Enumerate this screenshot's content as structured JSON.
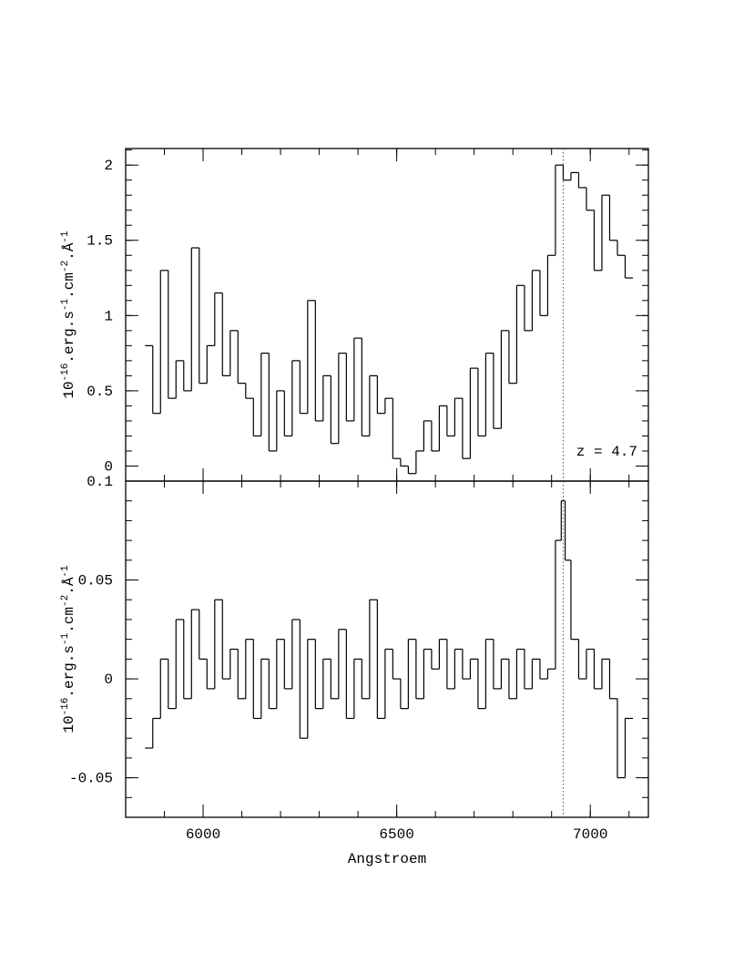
{
  "chart_data": [
    {
      "type": "line",
      "xlim": [
        5800,
        7150
      ],
      "xticks": [
        6000,
        6500,
        7000
      ],
      "x_minor_step": 100,
      "show_xticklabels": false,
      "ylim": [
        -0.1,
        2.11
      ],
      "yticks": [
        0,
        0.5,
        1,
        1.5,
        2
      ],
      "y_minor_step": 0.1,
      "ylabel_parts": [
        "10",
        "-16",
        ".erg.s",
        "-1",
        ".cm",
        "-2",
        ".Å",
        "-1"
      ],
      "color": "#000000",
      "marker_line": 6930,
      "annotation": "z = 4.7",
      "x": [
        5860,
        5880,
        5900,
        5920,
        5940,
        5960,
        5980,
        6000,
        6020,
        6040,
        6060,
        6080,
        6100,
        6120,
        6140,
        6160,
        6180,
        6200,
        6220,
        6240,
        6260,
        6280,
        6300,
        6320,
        6340,
        6360,
        6380,
        6400,
        6420,
        6440,
        6460,
        6480,
        6500,
        6520,
        6540,
        6560,
        6580,
        6600,
        6620,
        6640,
        6660,
        6680,
        6700,
        6720,
        6740,
        6760,
        6780,
        6800,
        6820,
        6840,
        6860,
        6880,
        6900,
        6920,
        6940,
        6960,
        6980,
        7000,
        7020,
        7040,
        7060,
        7080,
        7100
      ],
      "values": [
        0.8,
        0.35,
        1.3,
        0.45,
        0.7,
        0.5,
        1.45,
        0.55,
        0.8,
        1.15,
        0.6,
        0.9,
        0.55,
        0.45,
        0.2,
        0.75,
        0.1,
        0.5,
        0.2,
        0.7,
        0.35,
        1.1,
        0.3,
        0.6,
        0.15,
        0.75,
        0.3,
        0.85,
        0.2,
        0.6,
        0.35,
        0.45,
        0.05,
        0.0,
        -0.05,
        0.1,
        0.3,
        0.1,
        0.4,
        0.2,
        0.45,
        0.05,
        0.65,
        0.2,
        0.75,
        0.25,
        0.9,
        0.55,
        1.2,
        0.9,
        1.3,
        1.0,
        1.4,
        2.0,
        1.9,
        1.95,
        1.85,
        1.7,
        1.3,
        1.8,
        1.5,
        1.4,
        1.25
      ]
    },
    {
      "type": "line",
      "xlim": [
        5800,
        7150
      ],
      "xticks": [
        6000,
        6500,
        7000
      ],
      "x_minor_step": 100,
      "show_xticklabels": true,
      "xlabel": "Angstroem",
      "ylim": [
        -0.07,
        0.1
      ],
      "yticks": [
        -0.05,
        0,
        0.05,
        0.1
      ],
      "y_minor_step": 0.01,
      "ylabel_parts": [
        "10",
        "-16",
        ".erg.s",
        "-1",
        ".cm",
        "-2",
        ".Å",
        "-1"
      ],
      "color": "#000000",
      "marker_line": 6930,
      "x": [
        5860,
        5880,
        5900,
        5920,
        5940,
        5960,
        5980,
        6000,
        6020,
        6040,
        6060,
        6080,
        6100,
        6120,
        6140,
        6160,
        6180,
        6200,
        6220,
        6240,
        6260,
        6280,
        6300,
        6320,
        6340,
        6360,
        6380,
        6400,
        6420,
        6440,
        6460,
        6480,
        6500,
        6520,
        6540,
        6560,
        6580,
        6600,
        6620,
        6640,
        6660,
        6680,
        6700,
        6720,
        6740,
        6760,
        6780,
        6800,
        6820,
        6840,
        6860,
        6880,
        6900,
        6920,
        6930,
        6940,
        6960,
        6980,
        7000,
        7020,
        7040,
        7060,
        7080,
        7100
      ],
      "values": [
        -0.035,
        -0.02,
        0.01,
        -0.015,
        0.03,
        -0.01,
        0.035,
        0.01,
        -0.005,
        0.04,
        0.0,
        0.015,
        -0.01,
        0.02,
        -0.02,
        0.01,
        -0.015,
        0.02,
        -0.005,
        0.03,
        -0.03,
        0.02,
        -0.015,
        0.01,
        -0.01,
        0.025,
        -0.02,
        0.01,
        -0.01,
        0.04,
        -0.02,
        0.015,
        0.0,
        -0.015,
        0.02,
        -0.01,
        0.015,
        0.005,
        0.02,
        -0.005,
        0.015,
        0.0,
        0.01,
        -0.015,
        0.02,
        -0.005,
        0.01,
        -0.01,
        0.015,
        -0.005,
        0.01,
        0.0,
        0.005,
        0.07,
        0.09,
        0.06,
        0.02,
        0.0,
        0.015,
        -0.005,
        0.01,
        -0.01,
        -0.05,
        -0.02
      ]
    }
  ]
}
